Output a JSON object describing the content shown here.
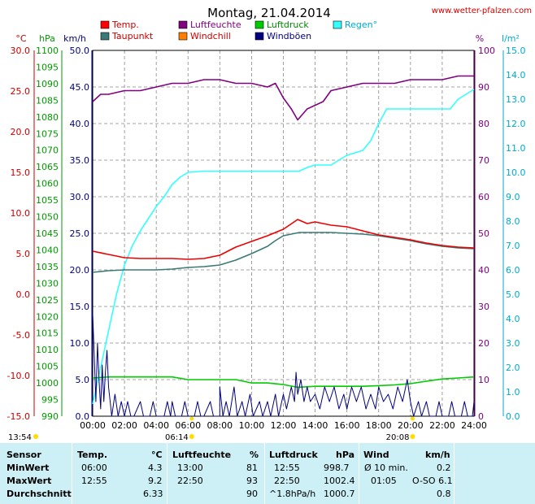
{
  "header": {
    "title": "Montag, 21.04.2014",
    "site": "www.wetter-pfalzen.com"
  },
  "chart_data": {
    "type": "line",
    "title": "Montag, 21.04.2014",
    "grid": true,
    "x_ticks": [
      "00:00",
      "02:00",
      "04:00",
      "06:00",
      "08:00",
      "10:00",
      "12:00",
      "14:00",
      "16:00",
      "18:00",
      "20:00",
      "22:00",
      "24:00"
    ],
    "xlim": [
      0,
      24
    ],
    "sunrise": "06:14",
    "sunset": "20:08",
    "now_time": "13:54",
    "axes": {
      "temp": {
        "unit": "°C",
        "color": "#cc0000",
        "range": [
          -15,
          30
        ],
        "ticks": [
          "30.0",
          "25.0",
          "20.0",
          "15.0",
          "10.0",
          "5.0",
          "0.0",
          "-5.0",
          "-10.0",
          "-15.0"
        ]
      },
      "pressure": {
        "unit": "hPa",
        "color": "#009900",
        "range": [
          990,
          1100
        ],
        "ticks": [
          "1100",
          "1095",
          "1090",
          "1085",
          "1080",
          "1075",
          "1070",
          "1065",
          "1060",
          "1055",
          "1050",
          "1045",
          "1040",
          "1035",
          "1030",
          "1025",
          "1020",
          "1015",
          "1010",
          "1005",
          "1000",
          "995",
          "990"
        ]
      },
      "wind": {
        "unit": "km/h",
        "color": "#000080",
        "range": [
          0,
          50
        ],
        "ticks": [
          "50.0",
          "45.0",
          "40.0",
          "35.0",
          "30.0",
          "25.0",
          "20.0",
          "15.0",
          "10.0",
          "5.0",
          "0.0"
        ]
      },
      "humidity": {
        "unit": "%",
        "color": "#800080",
        "range": [
          0,
          100
        ],
        "ticks": [
          "100",
          "90",
          "80",
          "70",
          "60",
          "50",
          "40",
          "30",
          "20",
          "10",
          "0"
        ]
      },
      "rain": {
        "unit": "l/m²",
        "color": "#00aacc",
        "range": [
          0,
          15
        ],
        "ticks": [
          "15.0",
          "14.0",
          "13.0",
          "12.0",
          "11.0",
          "10.0",
          "9.0",
          "8.0",
          "7.0",
          "6.0",
          "5.0",
          "4.0",
          "3.0",
          "2.0",
          "1.0",
          "0.0"
        ]
      }
    },
    "legend": [
      {
        "name": "Temp.",
        "color": "#ff0000"
      },
      {
        "name": "Taupunkt",
        "color": "#3a7a76"
      },
      {
        "name": "Luftfeuchte",
        "color": "#800080"
      },
      {
        "name": "Windchill",
        "color": "#ff8000"
      },
      {
        "name": "Luftdruck",
        "color": "#00cc00"
      },
      {
        "name": "Windböen",
        "color": "#000080"
      },
      {
        "name": "Regen°",
        "color": "#33ffff"
      }
    ],
    "series": [
      {
        "name": "Temp.",
        "axis": "temp",
        "color": "#ee0000",
        "points": [
          [
            0,
            5.3
          ],
          [
            1,
            4.9
          ],
          [
            2,
            4.5
          ],
          [
            3,
            4.4
          ],
          [
            4,
            4.4
          ],
          [
            5,
            4.4
          ],
          [
            6,
            4.3
          ],
          [
            7,
            4.4
          ],
          [
            8,
            4.8
          ],
          [
            9,
            5.8
          ],
          [
            10,
            6.5
          ],
          [
            11,
            7.2
          ],
          [
            11.5,
            7.6
          ],
          [
            12,
            8.0
          ],
          [
            12.9,
            9.2
          ],
          [
            13.5,
            8.7
          ],
          [
            14,
            8.9
          ],
          [
            15,
            8.5
          ],
          [
            16,
            8.3
          ],
          [
            17,
            7.8
          ],
          [
            18,
            7.3
          ],
          [
            19,
            7.0
          ],
          [
            20,
            6.7
          ],
          [
            21,
            6.3
          ],
          [
            22,
            6.0
          ],
          [
            23,
            5.8
          ],
          [
            24,
            5.7
          ]
        ]
      },
      {
        "name": "Taupunkt",
        "axis": "temp",
        "color": "#3a7a76",
        "points": [
          [
            0,
            2.7
          ],
          [
            1,
            2.9
          ],
          [
            2,
            3.0
          ],
          [
            3,
            3.0
          ],
          [
            4,
            3.0
          ],
          [
            5,
            3.1
          ],
          [
            6,
            3.3
          ],
          [
            7,
            3.4
          ],
          [
            8,
            3.6
          ],
          [
            9,
            4.2
          ],
          [
            10,
            5.0
          ],
          [
            11,
            5.9
          ],
          [
            11.5,
            6.6
          ],
          [
            12,
            7.2
          ],
          [
            13,
            7.6
          ],
          [
            14,
            7.6
          ],
          [
            15,
            7.6
          ],
          [
            16,
            7.5
          ],
          [
            17,
            7.4
          ],
          [
            18,
            7.2
          ],
          [
            19,
            6.9
          ],
          [
            20,
            6.6
          ],
          [
            21,
            6.2
          ],
          [
            22,
            5.9
          ],
          [
            23,
            5.7
          ],
          [
            24,
            5.6
          ]
        ]
      },
      {
        "name": "Luftfeuchte",
        "axis": "humidity",
        "color": "#800080",
        "points": [
          [
            0,
            86
          ],
          [
            0.5,
            88
          ],
          [
            1,
            88
          ],
          [
            2,
            89
          ],
          [
            3,
            89
          ],
          [
            4,
            90
          ],
          [
            5,
            91
          ],
          [
            6,
            91
          ],
          [
            7,
            92
          ],
          [
            8,
            92
          ],
          [
            9,
            91
          ],
          [
            10,
            91
          ],
          [
            11,
            90
          ],
          [
            11.5,
            91
          ],
          [
            12,
            87
          ],
          [
            12.5,
            84
          ],
          [
            12.9,
            81
          ],
          [
            13.5,
            84
          ],
          [
            14,
            85
          ],
          [
            14.5,
            86
          ],
          [
            15,
            89
          ],
          [
            16,
            90
          ],
          [
            17,
            91
          ],
          [
            18,
            91
          ],
          [
            19,
            91
          ],
          [
            20,
            92
          ],
          [
            21,
            92
          ],
          [
            22,
            92
          ],
          [
            23,
            93
          ],
          [
            24,
            93
          ]
        ]
      },
      {
        "name": "Luftdruck",
        "axis": "pressure",
        "color": "#00cc00",
        "points": [
          [
            0,
            1001.5
          ],
          [
            1,
            1001.8
          ],
          [
            2,
            1001.8
          ],
          [
            3,
            1001.8
          ],
          [
            4,
            1001.8
          ],
          [
            5,
            1001.8
          ],
          [
            6,
            1001.0
          ],
          [
            7,
            1001.0
          ],
          [
            8,
            1001.0
          ],
          [
            9,
            1001.0
          ],
          [
            10,
            1000.0
          ],
          [
            11,
            1000.0
          ],
          [
            12,
            999.5
          ],
          [
            12.9,
            998.7
          ],
          [
            14,
            999.0
          ],
          [
            15,
            999.0
          ],
          [
            16,
            999.0
          ],
          [
            17,
            999.0
          ],
          [
            18,
            999.2
          ],
          [
            19,
            999.4
          ],
          [
            20,
            999.8
          ],
          [
            21,
            1000.5
          ],
          [
            22,
            1001.2
          ],
          [
            23,
            1001.5
          ],
          [
            24,
            1001.8
          ]
        ]
      },
      {
        "name": "Regen°",
        "axis": "rain",
        "color": "#33ffff",
        "points": [
          [
            0,
            0.5
          ],
          [
            0.5,
            2.0
          ],
          [
            1,
            3.5
          ],
          [
            1.5,
            5.0
          ],
          [
            2,
            6.2
          ],
          [
            2.5,
            7.0
          ],
          [
            3,
            7.6
          ],
          [
            3.5,
            8.1
          ],
          [
            4,
            8.6
          ],
          [
            4.5,
            9.0
          ],
          [
            5,
            9.5
          ],
          [
            5.5,
            9.8
          ],
          [
            6,
            10.0
          ],
          [
            7,
            10.05
          ],
          [
            8,
            10.05
          ],
          [
            9,
            10.05
          ],
          [
            10,
            10.05
          ],
          [
            11,
            10.05
          ],
          [
            12,
            10.05
          ],
          [
            13,
            10.05
          ],
          [
            13.5,
            10.2
          ],
          [
            14,
            10.3
          ],
          [
            15,
            10.3
          ],
          [
            15.5,
            10.5
          ],
          [
            16,
            10.7
          ],
          [
            17,
            10.9
          ],
          [
            17.5,
            11.3
          ],
          [
            18,
            12.0
          ],
          [
            18.5,
            12.6
          ],
          [
            19,
            12.6
          ],
          [
            20,
            12.6
          ],
          [
            21,
            12.6
          ],
          [
            22,
            12.6
          ],
          [
            22.5,
            12.6
          ],
          [
            23,
            13.0
          ],
          [
            23.5,
            13.2
          ],
          [
            24,
            13.4
          ]
        ]
      },
      {
        "name": "Windböen",
        "axis": "wind",
        "color": "#000080",
        "points": [
          [
            0,
            14
          ],
          [
            0.1,
            8
          ],
          [
            0.2,
            2
          ],
          [
            0.3,
            10
          ],
          [
            0.4,
            5
          ],
          [
            0.5,
            1
          ],
          [
            0.6,
            7
          ],
          [
            0.7,
            2
          ],
          [
            0.8,
            6
          ],
          [
            0.9,
            9
          ],
          [
            1,
            4
          ],
          [
            1.1,
            2
          ],
          [
            1.2,
            0
          ],
          [
            1.4,
            3
          ],
          [
            1.6,
            0
          ],
          [
            1.8,
            2
          ],
          [
            2,
            0
          ],
          [
            2.2,
            2
          ],
          [
            2.4,
            0
          ],
          [
            2.6,
            0
          ],
          [
            3,
            2
          ],
          [
            3.2,
            0
          ],
          [
            3.6,
            0
          ],
          [
            3.8,
            2
          ],
          [
            4,
            0
          ],
          [
            4.5,
            0
          ],
          [
            4.7,
            2
          ],
          [
            4.9,
            0
          ],
          [
            5,
            2
          ],
          [
            5.2,
            0
          ],
          [
            5.6,
            0
          ],
          [
            5.8,
            2
          ],
          [
            6,
            0
          ],
          [
            6.4,
            0
          ],
          [
            6.6,
            2
          ],
          [
            6.8,
            0
          ],
          [
            7,
            0
          ],
          [
            7.4,
            2
          ],
          [
            7.6,
            0
          ],
          [
            8,
            0
          ],
          [
            8,
            4
          ],
          [
            8.2,
            0
          ],
          [
            8.4,
            2
          ],
          [
            8.6,
            0
          ],
          [
            8.9,
            4
          ],
          [
            9.1,
            0
          ],
          [
            9.4,
            2
          ],
          [
            9.6,
            0
          ],
          [
            9.9,
            3
          ],
          [
            10.1,
            0
          ],
          [
            10.5,
            2
          ],
          [
            10.7,
            0
          ],
          [
            11,
            2
          ],
          [
            11.2,
            0
          ],
          [
            11.5,
            3
          ],
          [
            11.7,
            0
          ],
          [
            12,
            3
          ],
          [
            12.2,
            1
          ],
          [
            12.5,
            4
          ],
          [
            12.7,
            2
          ],
          [
            12.8,
            6
          ],
          [
            12.9,
            3
          ],
          [
            13.1,
            5
          ],
          [
            13.3,
            2
          ],
          [
            13.5,
            4
          ],
          [
            13.7,
            2
          ],
          [
            14,
            3
          ],
          [
            14.3,
            1
          ],
          [
            14.6,
            4
          ],
          [
            14.9,
            2
          ],
          [
            15.2,
            4
          ],
          [
            15.5,
            1
          ],
          [
            15.8,
            3
          ],
          [
            16,
            1
          ],
          [
            16.3,
            4
          ],
          [
            16.6,
            2
          ],
          [
            16.9,
            4
          ],
          [
            17.2,
            1
          ],
          [
            17.5,
            3
          ],
          [
            17.8,
            1
          ],
          [
            18,
            4
          ],
          [
            18.3,
            2
          ],
          [
            18.6,
            3
          ],
          [
            18.9,
            1
          ],
          [
            19.2,
            4
          ],
          [
            19.5,
            2
          ],
          [
            19.8,
            5
          ],
          [
            20,
            2
          ],
          [
            20.2,
            0
          ],
          [
            20.5,
            2
          ],
          [
            20.7,
            0
          ],
          [
            21,
            2
          ],
          [
            21.2,
            0
          ],
          [
            21.6,
            0
          ],
          [
            21.8,
            2
          ],
          [
            22,
            0
          ],
          [
            22.4,
            0
          ],
          [
            22.6,
            2
          ],
          [
            22.8,
            0
          ],
          [
            23.2,
            0
          ],
          [
            23.4,
            2
          ],
          [
            23.6,
            0
          ],
          [
            23.9,
            0
          ],
          [
            24,
            2
          ]
        ]
      }
    ]
  },
  "stats": {
    "header": {
      "sensor": "Sensor",
      "temp": "Temp.",
      "temp_unit": "°C",
      "hum": "Luftfeuchte",
      "hum_unit": "%",
      "press": "Luftdruck",
      "press_unit": "hPa",
      "wind": "Wind",
      "wind_unit": "km/h"
    },
    "min": {
      "label": "MinWert",
      "t_time": "06:00",
      "t_val": "4.3",
      "h_time": "13:00",
      "h_val": "81",
      "p_time": "12:55",
      "p_val": "998.7",
      "w_label": "Ø 10 min.",
      "w_val": "0.2"
    },
    "max": {
      "label": "MaxWert",
      "t_time": "12:55",
      "t_val": "9.2",
      "h_time": "22:50",
      "h_val": "93",
      "p_time": "22:50",
      "p_val": "1002.4",
      "w_time": "01:05",
      "w_val": "O-SO 6.1"
    },
    "avg": {
      "label": "Durchschnitt",
      "t_val": "6.33",
      "h_val": "90",
      "p_label": "^1.8hPa/h",
      "p_val": "1000.7",
      "w_val": "0.8"
    }
  }
}
